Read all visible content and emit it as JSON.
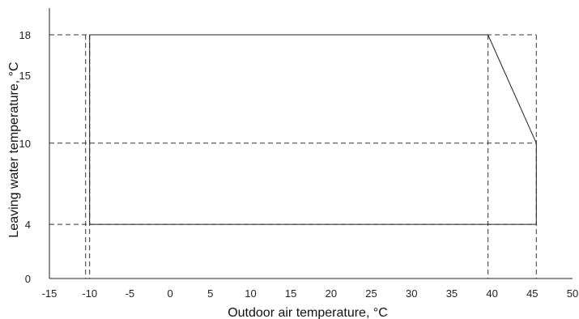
{
  "chart_data": {
    "type": "line",
    "xlabel": "Outdoor air temperature, °C",
    "ylabel": "Leaving water temperature, °C",
    "xlim": [
      -15,
      50
    ],
    "ylim": [
      0,
      20
    ],
    "x_ticks": [
      -15,
      -10,
      -5,
      0,
      5,
      10,
      15,
      20,
      25,
      30,
      35,
      40,
      45,
      50
    ],
    "y_ticks": [
      0,
      4,
      10,
      15,
      18
    ],
    "grid": false,
    "series": [
      {
        "points": [
          {
            "x": -10,
            "y": 4
          },
          {
            "x": -10,
            "y": 18
          },
          {
            "x": 39.5,
            "y": 18
          },
          {
            "x": 45.5,
            "y": 10
          },
          {
            "x": 45.5,
            "y": 4
          },
          {
            "x": -10,
            "y": 4
          }
        ]
      }
    ],
    "reference_lines": {
      "vertical_x": [
        -10.5,
        -10,
        39.5,
        45.5
      ],
      "horizontal_y": [
        4,
        10,
        18
      ]
    }
  }
}
